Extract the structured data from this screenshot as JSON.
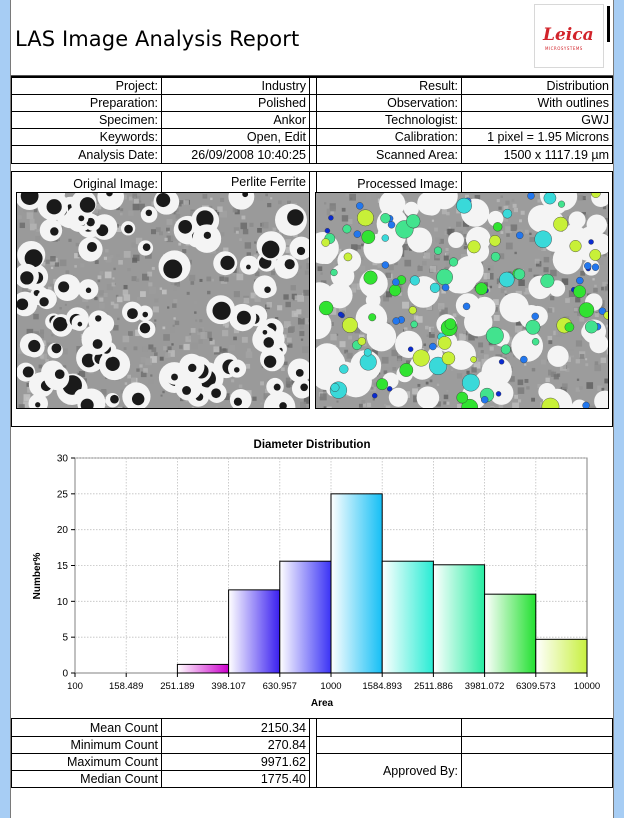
{
  "report": {
    "title": "LAS Image Analysis Report",
    "logo_text": "Leica",
    "logo_subtext": "MICROSYSTEMS"
  },
  "info_left": [
    {
      "label": "Project:",
      "value": "Industry"
    },
    {
      "label": "Preparation:",
      "value": "Polished"
    },
    {
      "label": "Specimen:",
      "value": "Ankor"
    },
    {
      "label": "Keywords:",
      "value": "Open, Edit"
    },
    {
      "label": "Analysis Date:",
      "value": "26/09/2008 10:40:25"
    }
  ],
  "info_right": [
    {
      "label": "Result:",
      "value": "Distribution"
    },
    {
      "label": "Observation:",
      "value": "With outlines"
    },
    {
      "label": "Technologist:",
      "value": "GWJ"
    },
    {
      "label": "Calibration:",
      "value": "1 pixel = 1.95 Microns"
    },
    {
      "label": "Scanned Area:",
      "value": "1500 x 1117.19 µm"
    }
  ],
  "images": {
    "original_label": "Original Image:",
    "original_name": "Perlite Ferrite",
    "processed_label": "Processed Image:"
  },
  "stats": [
    {
      "label": "Mean Count",
      "value": "2150.34"
    },
    {
      "label": "Minimum Count",
      "value": "270.84"
    },
    {
      "label": "Maximum Count",
      "value": "9971.62"
    },
    {
      "label": "Median Count",
      "value": "1775.40"
    }
  ],
  "approval": {
    "label": "Approved By:"
  },
  "colors": {
    "page_bg": "#b3d3f4",
    "bar_colors": [
      "#cc00cc",
      "#3a1ff0",
      "#3b33f5",
      "#15bff5",
      "#28ecd4",
      "#28eca2",
      "#22e030",
      "#c8f040"
    ]
  },
  "chart_data": {
    "type": "bar",
    "title": "Diameter Distribution",
    "xlabel": "Area",
    "ylabel": "Number%",
    "tick_labels": [
      "100",
      "158.489",
      "251.189",
      "398.107",
      "630.957",
      "1000",
      "1584.893",
      "2511.886",
      "3981.072",
      "6309.573",
      "10000"
    ],
    "categories": [
      "100-158.489",
      "158.489-251.189",
      "251.189-398.107",
      "398.107-630.957",
      "630.957-1000",
      "1000-1584.893",
      "1584.893-2511.886",
      "2511.886-3981.072",
      "3981.072-6309.573",
      "6309.573-10000"
    ],
    "values": [
      0,
      0,
      1.2,
      11.6,
      15.6,
      25,
      15.6,
      15.1,
      11,
      4.7
    ],
    "ylim": [
      0,
      30
    ],
    "yticks": [
      0,
      5,
      10,
      15,
      20,
      25,
      30
    ],
    "grid": true,
    "legend": "none"
  }
}
